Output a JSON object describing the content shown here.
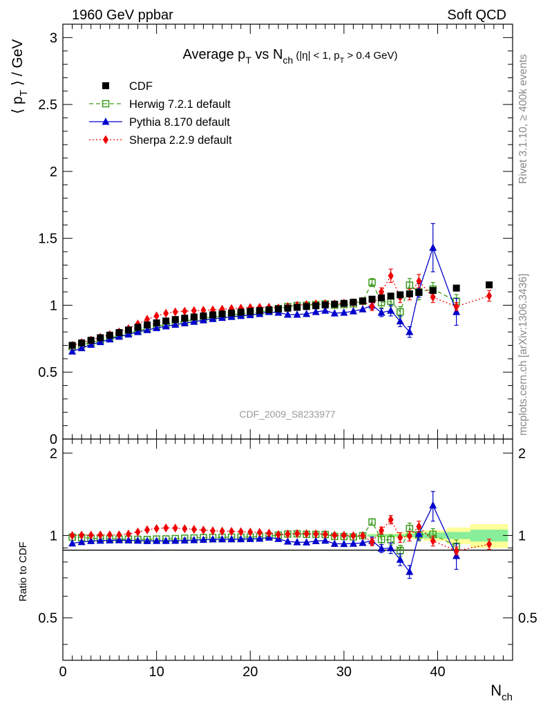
{
  "header": {
    "left": "1960 GeV ppbar",
    "right": "Soft QCD"
  },
  "side_labels": {
    "rivet": "Rivet 3.1.10, ≥ 400k events",
    "mcplots": "mcplots.cern.ch [arXiv:1306.3436]"
  },
  "watermark": "CDF_2009_S8233977",
  "chart_data": [
    {
      "type": "scatter",
      "title": "Average p_T vs N_ch (|η| < 1, p_T > 0.4 GeV)",
      "title_parts": {
        "main_a": "Average p",
        "sub_a": "T",
        "main_b": " vs N",
        "sub_b": "ch",
        "small_a": " (|η| < 1, p",
        "small_sub": "T",
        "small_b": " > 0.4 GeV)"
      },
      "ylabel": "⟨ p_T ⟩ / GeV",
      "ylabel_parts": {
        "pre": "⟨ p",
        "sub": "T",
        "post": " ⟩ / GeV"
      },
      "xlabel": "N_ch",
      "xlabel_parts": {
        "main": "N",
        "sub": "ch"
      },
      "xlim": [
        0,
        48
      ],
      "ylim": [
        0,
        3.1
      ],
      "xticks": [
        0,
        10,
        20,
        30,
        40
      ],
      "xtick_labels": [
        "0",
        "10",
        "20",
        "30",
        "40"
      ],
      "yticks": [
        0,
        0.5,
        1,
        1.5,
        2,
        2.5,
        3
      ],
      "ytick_labels": [
        "0",
        "0.5",
        "1",
        "1.5",
        "2",
        "2.5",
        "3"
      ],
      "legend_position": "top-left",
      "series": [
        {
          "name": "CDF",
          "color": "#000000",
          "marker": "square",
          "x": [
            1,
            2,
            3,
            4,
            5,
            6,
            7,
            8,
            9,
            10,
            11,
            12,
            13,
            14,
            15,
            16,
            17,
            18,
            19,
            20,
            21,
            22,
            23,
            24,
            25,
            26,
            27,
            28,
            29,
            30,
            31,
            32,
            33,
            34,
            35,
            36,
            37,
            38,
            39.5,
            42,
            45.5
          ],
          "y": [
            0.7,
            0.718,
            0.738,
            0.757,
            0.776,
            0.796,
            0.815,
            0.835,
            0.853,
            0.868,
            0.882,
            0.893,
            0.903,
            0.912,
            0.92,
            0.928,
            0.935,
            0.942,
            0.948,
            0.954,
            0.96,
            0.966,
            0.972,
            0.978,
            0.984,
            0.99,
            0.996,
            1.002,
            1.008,
            1.014,
            1.022,
            1.032,
            1.045,
            1.055,
            1.068,
            1.078,
            1.085,
            1.095,
            1.11,
            1.128,
            1.152
          ]
        },
        {
          "name": "Herwig 7.2.1 default",
          "color": "#3a9a1a",
          "marker": "open-square",
          "line": "dashed",
          "x": [
            1,
            2,
            3,
            4,
            5,
            6,
            7,
            8,
            9,
            10,
            11,
            12,
            13,
            14,
            15,
            16,
            17,
            18,
            19,
            20,
            21,
            22,
            23,
            24,
            25,
            26,
            27,
            28,
            29,
            30,
            31,
            32,
            33,
            34,
            35,
            36,
            37,
            38,
            39.5,
            42
          ],
          "y": [
            0.69,
            0.705,
            0.72,
            0.738,
            0.755,
            0.772,
            0.79,
            0.808,
            0.825,
            0.842,
            0.856,
            0.87,
            0.882,
            0.893,
            0.903,
            0.912,
            0.921,
            0.928,
            0.935,
            0.942,
            0.95,
            0.96,
            0.975,
            0.99,
            0.998,
            1.0,
            1.005,
            1.01,
            1.0,
            1.005,
            1.01,
            1.03,
            1.17,
            1.02,
            1.03,
            0.95,
            1.15,
            1.1,
            1.12,
            1.03
          ],
          "err": [
            0,
            0,
            0,
            0,
            0,
            0,
            0,
            0,
            0,
            0,
            0,
            0,
            0,
            0,
            0,
            0,
            0,
            0,
            0,
            0,
            0,
            0,
            0,
            0,
            0,
            0,
            0,
            0,
            0,
            0,
            0,
            0,
            0.03,
            0.04,
            0.04,
            0.04,
            0.05,
            0.06,
            0.05,
            0.05
          ]
        },
        {
          "name": "Pythia 8.170 default",
          "color": "#0000cc",
          "marker": "triangle",
          "line": "solid",
          "x": [
            1,
            2,
            3,
            4,
            5,
            6,
            7,
            8,
            9,
            10,
            11,
            12,
            13,
            14,
            15,
            16,
            17,
            18,
            19,
            20,
            21,
            22,
            23,
            24,
            25,
            26,
            27,
            28,
            29,
            30,
            31,
            32,
            33,
            34,
            35,
            36,
            37,
            38,
            39.5,
            42
          ],
          "y": [
            0.655,
            0.68,
            0.705,
            0.725,
            0.745,
            0.765,
            0.782,
            0.8,
            0.815,
            0.83,
            0.843,
            0.855,
            0.866,
            0.877,
            0.888,
            0.898,
            0.906,
            0.913,
            0.92,
            0.927,
            0.935,
            0.95,
            0.945,
            0.93,
            0.93,
            0.935,
            0.95,
            0.96,
            0.94,
            0.945,
            0.955,
            0.97,
            1.0,
            0.945,
            0.96,
            0.88,
            0.8,
            1.11,
            1.43,
            0.95
          ],
          "err": [
            0,
            0,
            0,
            0,
            0,
            0,
            0,
            0,
            0,
            0,
            0,
            0,
            0,
            0,
            0,
            0,
            0,
            0,
            0,
            0,
            0,
            0,
            0,
            0,
            0,
            0,
            0,
            0,
            0,
            0,
            0,
            0,
            0.03,
            0.03,
            0.04,
            0.04,
            0.04,
            0.05,
            0.18,
            0.1
          ]
        },
        {
          "name": "Sherpa 2.2.9 default",
          "color": "#ee0000",
          "marker": "diamond",
          "line": "dotted",
          "x": [
            1,
            2,
            3,
            4,
            5,
            6,
            7,
            8,
            9,
            10,
            11,
            12,
            13,
            14,
            15,
            16,
            17,
            18,
            19,
            20,
            21,
            22,
            23,
            24,
            25,
            26,
            27,
            28,
            29,
            30,
            31,
            32,
            33,
            34,
            35,
            36,
            37,
            38,
            39.5,
            42,
            45.5
          ],
          "y": [
            0.7,
            0.72,
            0.74,
            0.76,
            0.78,
            0.8,
            0.825,
            0.86,
            0.895,
            0.92,
            0.94,
            0.95,
            0.955,
            0.96,
            0.962,
            0.965,
            0.97,
            0.975,
            0.978,
            0.982,
            0.985,
            0.985,
            0.98,
            0.99,
            1.0,
            1.005,
            1.01,
            1.012,
            1.01,
            1.015,
            1.02,
            1.03,
            0.99,
            1.1,
            1.22,
            1.06,
            1.08,
            1.18,
            1.06,
            0.99,
            1.07
          ],
          "err": [
            0,
            0,
            0,
            0,
            0,
            0,
            0,
            0,
            0,
            0,
            0,
            0,
            0,
            0,
            0,
            0,
            0,
            0,
            0,
            0,
            0,
            0,
            0,
            0,
            0,
            0,
            0,
            0,
            0,
            0,
            0,
            0,
            0.03,
            0.03,
            0.05,
            0.04,
            0.04,
            0.05,
            0.04,
            0.03,
            0.04
          ]
        }
      ]
    },
    {
      "type": "scatter",
      "title": "",
      "ylabel": "Ratio to CDF",
      "xlim": [
        0,
        48
      ],
      "ylim": [
        0.35,
        2.25
      ],
      "yticks": [
        0.5,
        1,
        2
      ],
      "ytick_labels": [
        "0.5",
        "1",
        "2"
      ],
      "reference_line": 1,
      "uncertainty_bands": {
        "inner_color": "#88ee99",
        "outer_color": "#ffff99",
        "bins": [
          {
            "x0": 32.5,
            "x1": 33.5,
            "inner": 0.01,
            "outer": 0.015
          },
          {
            "x0": 33.5,
            "x1": 34.5,
            "inner": 0.01,
            "outer": 0.015
          },
          {
            "x0": 34.5,
            "x1": 35.5,
            "inner": 0.01,
            "outer": 0.015
          },
          {
            "x0": 35.5,
            "x1": 36.5,
            "inner": 0.01,
            "outer": 0.02
          },
          {
            "x0": 36.5,
            "x1": 37.5,
            "inner": 0.015,
            "outer": 0.025
          },
          {
            "x0": 37.5,
            "x1": 38.5,
            "inner": 0.02,
            "outer": 0.03
          },
          {
            "x0": 38.5,
            "x1": 41.0,
            "inner": 0.025,
            "outer": 0.045
          },
          {
            "x0": 41.0,
            "x1": 43.5,
            "inner": 0.03,
            "outer": 0.07
          },
          {
            "x0": 43.5,
            "x1": 47.5,
            "inner": 0.05,
            "outer": 0.1
          }
        ]
      },
      "series": [
        {
          "name": "Herwig 7.2.1 default",
          "color": "#3a9a1a",
          "marker": "open-square",
          "line": "dashed",
          "x": [
            1,
            2,
            3,
            4,
            5,
            6,
            7,
            8,
            9,
            10,
            11,
            12,
            13,
            14,
            15,
            16,
            17,
            18,
            19,
            20,
            21,
            22,
            23,
            24,
            25,
            26,
            27,
            28,
            29,
            30,
            31,
            32,
            33,
            34,
            35,
            36,
            37,
            38,
            39.5,
            42
          ],
          "y": [
            0.986,
            0.982,
            0.976,
            0.975,
            0.973,
            0.97,
            0.969,
            0.968,
            0.967,
            0.97,
            0.971,
            0.974,
            0.977,
            0.979,
            0.982,
            0.983,
            0.985,
            0.985,
            0.986,
            0.987,
            0.99,
            0.994,
            1.003,
            1.012,
            1.014,
            1.01,
            1.009,
            1.008,
            0.992,
            0.991,
            0.988,
            0.998,
            1.12,
            0.967,
            0.964,
            0.881,
            1.06,
            1.005,
            1.009,
            0.913
          ],
          "err": [
            0,
            0,
            0,
            0,
            0,
            0,
            0,
            0,
            0,
            0,
            0,
            0,
            0,
            0,
            0,
            0,
            0,
            0,
            0,
            0,
            0,
            0,
            0,
            0,
            0,
            0,
            0,
            0,
            0,
            0,
            0,
            0,
            0.03,
            0.04,
            0.04,
            0.04,
            0.05,
            0.05,
            0.05,
            0.05
          ]
        },
        {
          "name": "Pythia 8.170 default",
          "color": "#0000cc",
          "marker": "triangle",
          "line": "solid",
          "x": [
            1,
            2,
            3,
            4,
            5,
            6,
            7,
            8,
            9,
            10,
            11,
            12,
            13,
            14,
            15,
            16,
            17,
            18,
            19,
            20,
            21,
            22,
            23,
            24,
            25,
            26,
            27,
            28,
            29,
            30,
            31,
            32,
            33,
            34,
            35,
            36,
            37,
            38,
            39.5,
            42
          ],
          "y": [
            0.936,
            0.947,
            0.955,
            0.958,
            0.96,
            0.961,
            0.96,
            0.958,
            0.955,
            0.956,
            0.956,
            0.957,
            0.959,
            0.962,
            0.965,
            0.968,
            0.969,
            0.969,
            0.97,
            0.972,
            0.974,
            0.983,
            0.972,
            0.951,
            0.945,
            0.944,
            0.954,
            0.958,
            0.933,
            0.932,
            0.934,
            0.94,
            0.957,
            0.896,
            0.899,
            0.816,
            0.737,
            1.014,
            1.288,
            0.842
          ],
          "err": [
            0,
            0,
            0,
            0,
            0,
            0,
            0,
            0,
            0,
            0,
            0,
            0,
            0,
            0,
            0,
            0,
            0,
            0,
            0,
            0,
            0,
            0,
            0,
            0,
            0,
            0,
            0,
            0,
            0,
            0,
            0,
            0,
            0.03,
            0.03,
            0.04,
            0.04,
            0.04,
            0.05,
            0.16,
            0.09
          ]
        },
        {
          "name": "Sherpa 2.2.9 default",
          "color": "#ee0000",
          "marker": "diamond",
          "line": "dotted",
          "x": [
            1,
            2,
            3,
            4,
            5,
            6,
            7,
            8,
            9,
            10,
            11,
            12,
            13,
            14,
            15,
            16,
            17,
            18,
            19,
            20,
            21,
            22,
            23,
            24,
            25,
            26,
            27,
            28,
            29,
            30,
            31,
            32,
            33,
            34,
            35,
            36,
            37,
            38,
            39.5,
            42,
            45.5
          ],
          "y": [
            1.0,
            1.003,
            1.003,
            1.004,
            1.005,
            1.005,
            1.012,
            1.03,
            1.049,
            1.06,
            1.066,
            1.064,
            1.058,
            1.053,
            1.046,
            1.04,
            1.037,
            1.035,
            1.032,
            1.029,
            1.026,
            1.02,
            1.008,
            1.012,
            1.016,
            1.015,
            1.014,
            1.01,
            1.002,
            1.001,
            0.998,
            0.998,
            0.947,
            1.043,
            1.142,
            0.983,
            0.995,
            1.078,
            0.955,
            0.878,
            0.929
          ],
          "err": [
            0,
            0,
            0,
            0,
            0,
            0,
            0,
            0,
            0,
            0,
            0,
            0,
            0,
            0,
            0,
            0,
            0,
            0,
            0,
            0,
            0,
            0,
            0,
            0,
            0,
            0,
            0,
            0,
            0,
            0,
            0,
            0,
            0.03,
            0.03,
            0.04,
            0.04,
            0.04,
            0.05,
            0.04,
            0.03,
            0.04
          ]
        }
      ]
    }
  ]
}
